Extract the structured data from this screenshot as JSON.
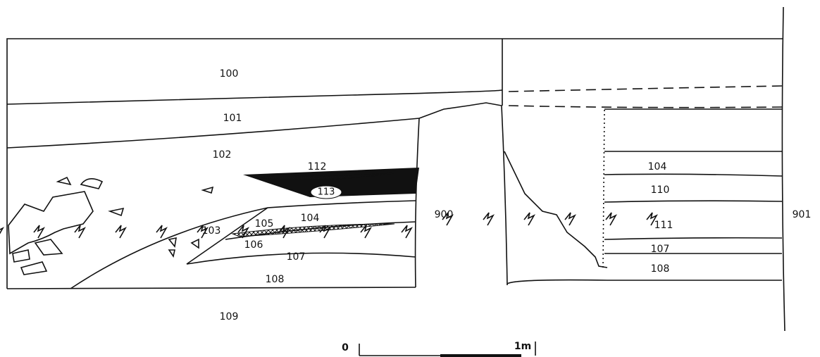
{
  "section": {
    "labels": [
      "100",
      "101",
      "102",
      "112",
      "113",
      "104",
      "105",
      "103",
      "106",
      "107",
      "108",
      "109",
      "900",
      "104",
      "110",
      "111",
      "107",
      "108",
      "901"
    ]
  },
  "scale": {
    "start": "0",
    "end": "1m"
  }
}
